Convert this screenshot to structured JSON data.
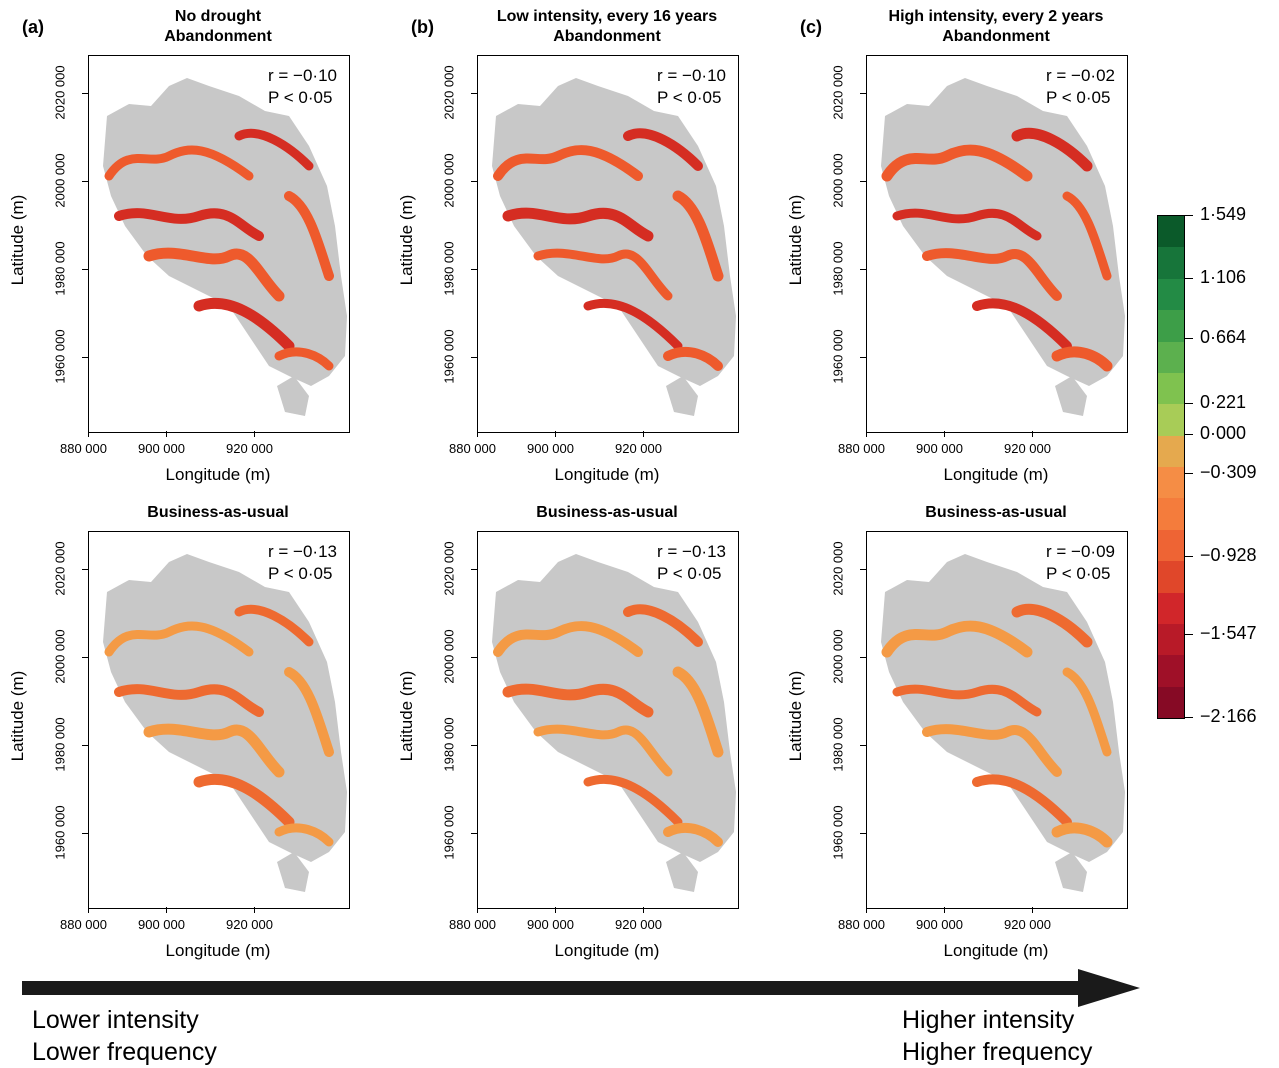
{
  "panels": [
    {
      "tag": "(a)",
      "title1": "No drought",
      "title2": "Abandonment",
      "title_bottom": "Business-as-usual",
      "top": {
        "r": "r = −0·10",
        "p": "P < 0·05"
      },
      "bottom": {
        "r": "r = −0·13",
        "p": "P < 0·05"
      }
    },
    {
      "tag": "(b)",
      "title1": "Low intensity, every 16 years",
      "title2": "Abandonment",
      "title_bottom": "Business-as-usual",
      "top": {
        "r": "r = −0·10",
        "p": "P < 0·05"
      },
      "bottom": {
        "r": "r = −0·13",
        "p": "P < 0·05"
      }
    },
    {
      "tag": "(c)",
      "title1": "High intensity, every 2 years",
      "title2": "Abandonment",
      "title_bottom": "Business-as-usual",
      "top": {
        "r": "r = −0·02",
        "p": "P < 0·05"
      },
      "bottom": {
        "r": "r = −0·09",
        "p": "P < 0·05"
      }
    }
  ],
  "axes": {
    "xlabel": "Longitude (m)",
    "ylabel": "Latitude (m)",
    "xticks": [
      "880 000",
      "900 000",
      "920 000"
    ],
    "yticks": [
      "2020 000",
      "2000 000",
      "1980 000",
      "1960 000"
    ]
  },
  "legend": {
    "labels": [
      "1·549",
      "1·106",
      "0·664",
      "0·221",
      "0·000",
      "−0·309",
      "−0·928",
      "−1·547",
      "−2·166"
    ],
    "colors": [
      "#0b5a2a",
      "#17753a",
      "#238b45",
      "#3d9e48",
      "#5cb04e",
      "#7fc24f",
      "#a8cc57",
      "#e5a94e",
      "#f58d45",
      "#f47c3c",
      "#ee6434",
      "#e0472a",
      "#d1262a",
      "#b81a28",
      "#9f1028",
      "#860a25"
    ]
  },
  "bottom": {
    "left1": "Lower intensity",
    "left2": "Lower frequency",
    "right1": "Higher intensity",
    "right2": "Higher frequency"
  }
}
